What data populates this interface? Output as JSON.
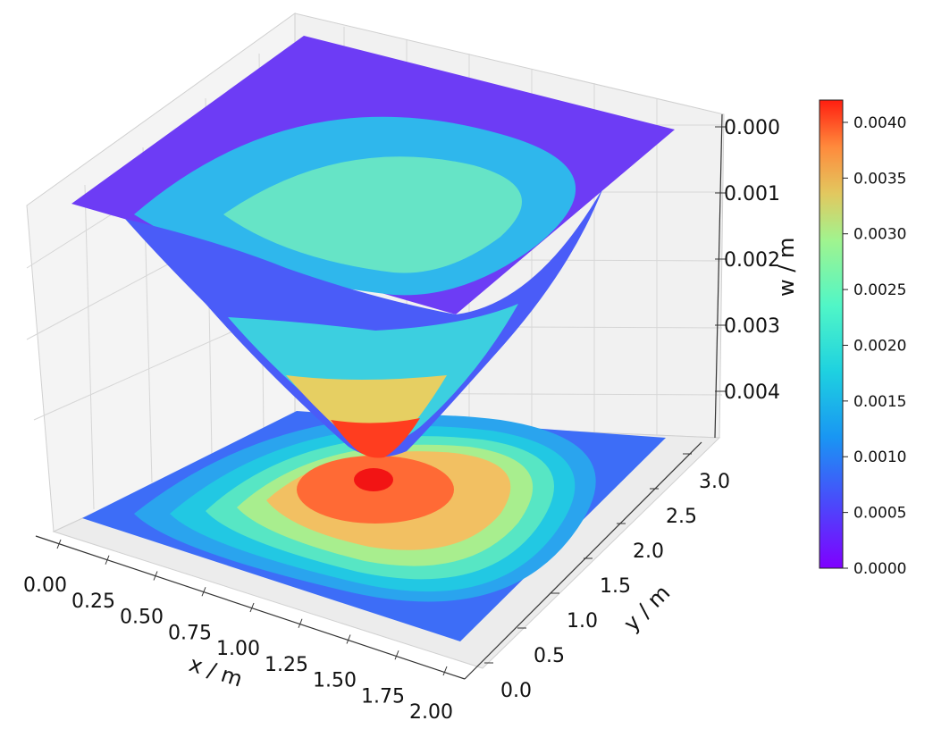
{
  "chart_data": {
    "type": "surface3d",
    "z_inverted": true,
    "xlabel": "x / m",
    "ylabel": "y / m",
    "zlabel": "w / m",
    "xlim": [
      0,
      2
    ],
    "ylim": [
      0,
      3
    ],
    "zlim": [
      0,
      0.0045
    ],
    "x_ticks": [
      "0.00",
      "0.25",
      "0.50",
      "0.75",
      "1.00",
      "1.25",
      "1.50",
      "1.75",
      "2.00"
    ],
    "y_ticks": [
      "0.0",
      "0.5",
      "1.0",
      "1.5",
      "2.0",
      "2.5",
      "3.0"
    ],
    "z_ticks": [
      "0.000",
      "0.001",
      "0.002",
      "0.003",
      "0.004"
    ],
    "colorbar_ticks": [
      "0.0000",
      "0.0005",
      "0.0010",
      "0.0015",
      "0.0020",
      "0.0025",
      "0.0030",
      "0.0035",
      "0.0040"
    ],
    "colorbar_range": [
      0,
      0.0042
    ],
    "colormap": "rainbow",
    "max_deflection": 0.0042,
    "max_location": {
      "x": 1.0,
      "y": 1.5
    },
    "contour_projection_on_floor": true,
    "grid": true
  }
}
